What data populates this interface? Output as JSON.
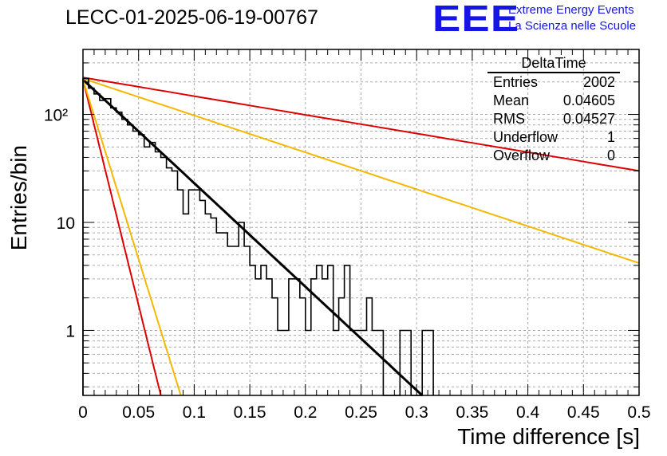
{
  "header": {
    "title": "LECC-01-2025-06-19-00767",
    "logo": "EEE",
    "logo_line1": "Extreme Energy Events",
    "logo_line2": "La Scienza nelle Scuole"
  },
  "stats_box": {
    "title": "DeltaTime",
    "rows": [
      {
        "label": "Entries",
        "value": "2002"
      },
      {
        "label": "Mean",
        "value": "0.04605"
      },
      {
        "label": "RMS",
        "value": "0.04527"
      },
      {
        "label": "Underflow",
        "value": "1"
      },
      {
        "label": "Overflow",
        "value": "0"
      }
    ]
  },
  "chart_data": {
    "type": "line",
    "xlabel": "Time difference [s]",
    "ylabel": "Entries/bin",
    "xlim": [
      0,
      0.5
    ],
    "ylim": [
      0.25,
      400
    ],
    "yscale": "log",
    "grid": true,
    "x_ticks": [
      "0",
      "0.05",
      "0.1",
      "0.15",
      "0.2",
      "0.25",
      "0.3",
      "0.35",
      "0.4",
      "0.45",
      "0.5"
    ],
    "y_ticks": [
      "1",
      "10",
      "10²"
    ],
    "histogram": {
      "bin_width": 0.005,
      "x_start": 0,
      "counts": [
        215,
        175,
        155,
        135,
        140,
        115,
        105,
        90,
        80,
        70,
        65,
        50,
        55,
        45,
        40,
        32,
        30,
        20,
        12,
        20,
        20,
        16,
        12,
        11,
        8,
        8,
        6,
        6,
        10,
        6,
        4,
        3,
        4,
        3,
        2,
        1,
        1,
        3,
        3,
        2,
        1,
        3,
        4,
        3,
        4,
        1,
        2,
        4,
        1,
        1,
        1,
        2,
        1,
        1,
        0.2,
        0.2,
        0.2,
        1,
        1,
        0.2,
        0.2,
        1,
        1
      ]
    },
    "curves": [
      {
        "color": "#000000",
        "x": [
          0.0,
          0.305
        ],
        "y": [
          210,
          0.25
        ]
      },
      {
        "color": "#dd0000",
        "x": [
          0.0,
          0.5
        ],
        "y": [
          220,
          30
        ]
      },
      {
        "color": "#f5b800",
        "x": [
          0.0,
          0.5
        ],
        "y": [
          215,
          4.2
        ]
      },
      {
        "color": "#dd0000",
        "x": [
          0.0,
          0.07
        ],
        "y": [
          210,
          0.25
        ]
      },
      {
        "color": "#f5b800",
        "x": [
          0.0,
          0.088
        ],
        "y": [
          210,
          0.25
        ]
      }
    ]
  }
}
